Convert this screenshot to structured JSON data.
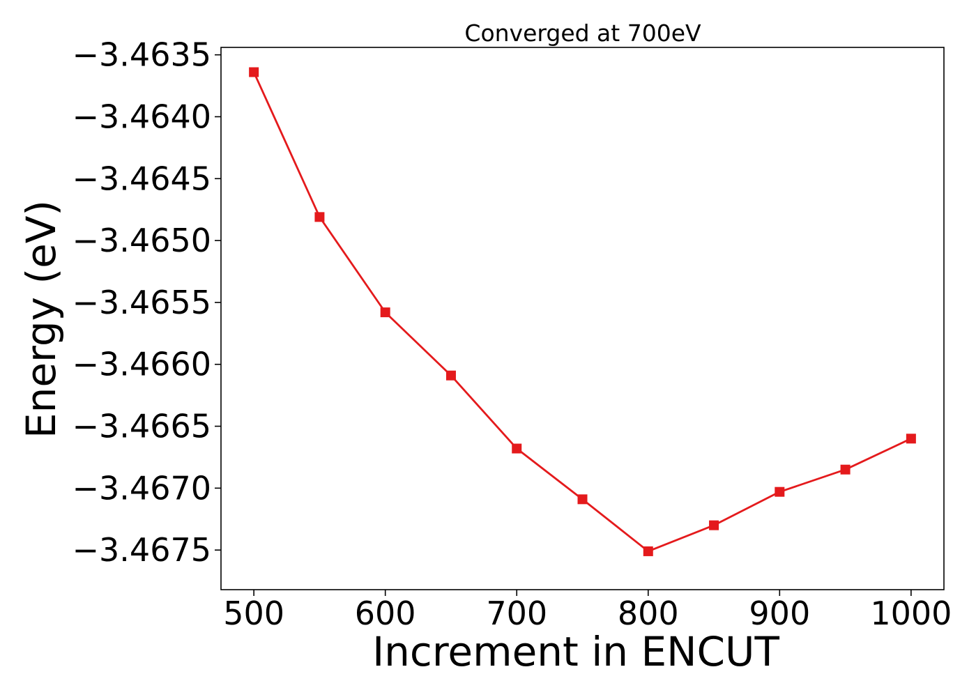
{
  "chart_data": {
    "type": "line",
    "title": "Converged at 700eV",
    "xlabel": "Increment in ENCUT",
    "ylabel": "Energy (eV)",
    "x": [
      500,
      550,
      600,
      650,
      700,
      750,
      800,
      850,
      900,
      950,
      1000
    ],
    "series": [
      {
        "values": [
          -3.46364,
          -3.46481,
          -3.46558,
          -3.46609,
          -3.46668,
          -3.46709,
          -3.46751,
          -3.4673,
          -3.46703,
          -3.46685,
          -3.4666
        ],
        "color": "#e41a1c",
        "marker": "square"
      }
    ],
    "xlim": [
      475,
      1025
    ],
    "ylim": [
      -3.46782,
      -3.46344
    ],
    "x_ticks": [
      500,
      600,
      700,
      800,
      900,
      1000
    ],
    "x_tick_labels": [
      "500",
      "600",
      "700",
      "800",
      "900",
      "1000"
    ],
    "y_ticks": [
      -3.4635,
      -3.464,
      -3.4645,
      -3.465,
      -3.4655,
      -3.466,
      -3.4665,
      -3.467,
      -3.4675
    ],
    "y_tick_labels": [
      "−3.4635",
      "−3.4640",
      "−3.4645",
      "−3.4650",
      "−3.4655",
      "−3.4660",
      "−3.4665",
      "−3.4670",
      "−3.4675"
    ],
    "grid": false,
    "legend": "none"
  }
}
